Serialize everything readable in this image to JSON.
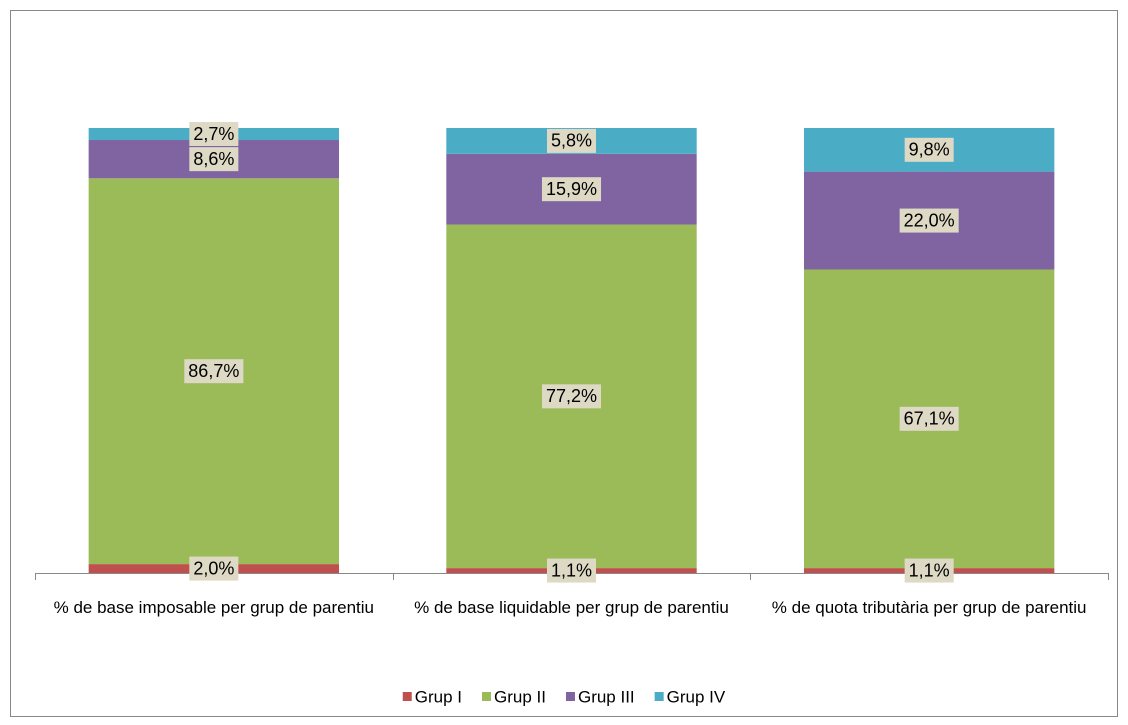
{
  "chart_data": {
    "type": "stacked_bar",
    "categories": [
      "% de base imposable per grup de parentiu",
      "% de base liquidable per grup de parentiu",
      "% de quota tributària per grup de parentiu"
    ],
    "ylim": [
      0,
      100
    ],
    "label_color": "#ddd9c4",
    "legend": "bottom",
    "series": [
      {
        "name": "Grup I",
        "color": "#c0504d",
        "values": [
          2.0,
          1.1,
          1.1
        ],
        "value_labels": [
          "2,0%",
          "1,1%",
          "1,1%"
        ]
      },
      {
        "name": "Grup II",
        "color": "#9bbb59",
        "values": [
          86.7,
          77.2,
          67.1
        ],
        "value_labels": [
          "86,7%",
          "77,2%",
          "67,1%"
        ]
      },
      {
        "name": "Grup III",
        "color": "#8064a2",
        "values": [
          8.6,
          15.9,
          22.0
        ],
        "value_labels": [
          "8,6%",
          "15,9%",
          "22,0%"
        ]
      },
      {
        "name": "Grup IV",
        "color": "#4bacc6",
        "values": [
          2.7,
          5.8,
          9.8
        ],
        "value_labels": [
          "2,7%",
          "5,8%",
          "9,8%"
        ]
      }
    ]
  }
}
